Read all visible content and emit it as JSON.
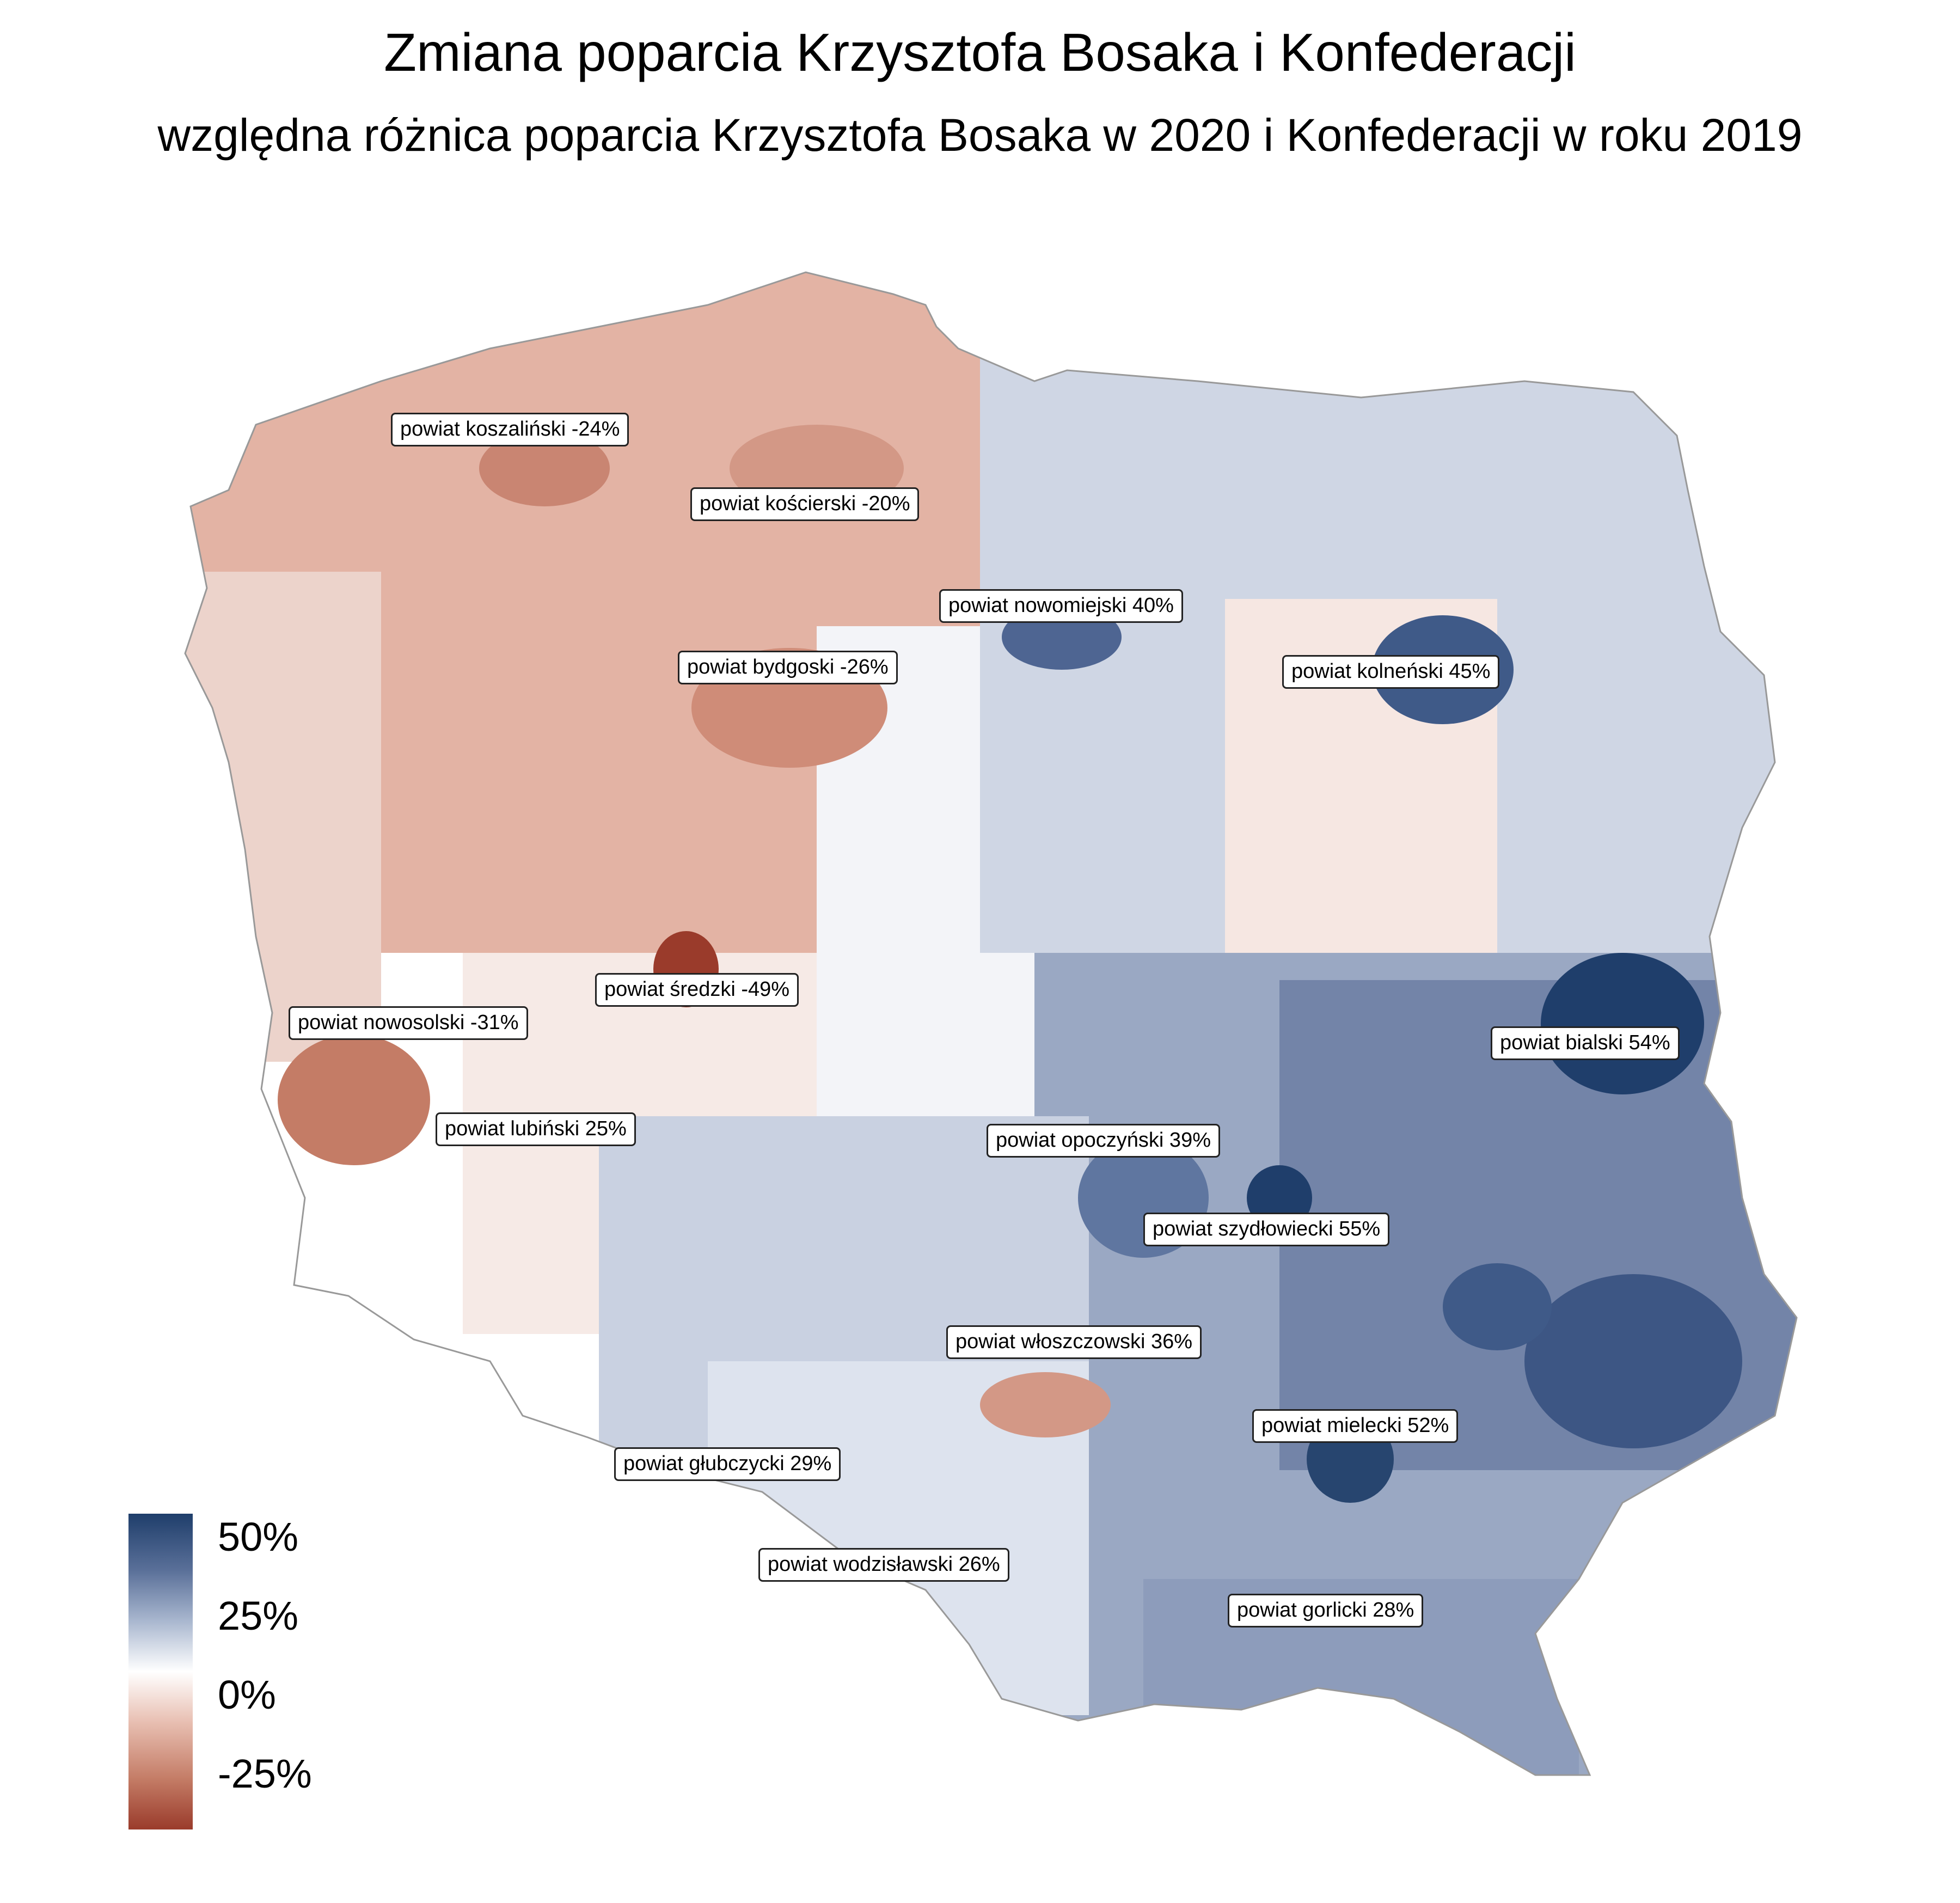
{
  "title": "Zmiana poparcia Krzysztofa Bosaka i Konfederacji",
  "subtitle": "względna różnica poparcia Krzysztofa Bosaka w 2020 i Konfederacji w roku 2019",
  "colors": {
    "strong_positive": "#1f3e6b",
    "positive": "#5a7099",
    "mild_positive": "#a9b7cf",
    "neutral": "#ffffff",
    "mild_negative": "#e8bfb2",
    "negative": "#c47c66",
    "strong_negative": "#9a3b2b"
  },
  "legend": {
    "labels": [
      "50%",
      "25%",
      "0%",
      "-25%"
    ],
    "values": [
      50,
      25,
      0,
      -25
    ],
    "range": [
      -50,
      55
    ]
  },
  "labels": [
    {
      "text": "powiat koszaliński -24%",
      "value": -24
    },
    {
      "text": "powiat kościerski -20%",
      "value": -20
    },
    {
      "text": "powiat nowomiejski 40%",
      "value": 40
    },
    {
      "text": "powiat bydgoski -26%",
      "value": -26
    },
    {
      "text": "powiat kolneński 45%",
      "value": 45
    },
    {
      "text": "powiat średzki -49%",
      "value": -49
    },
    {
      "text": "powiat nowosolski -31%",
      "value": -31
    },
    {
      "text": "powiat bialski 54%",
      "value": 54
    },
    {
      "text": "powiat lubiński 25%",
      "value": 25
    },
    {
      "text": "powiat opoczyński 39%",
      "value": 39
    },
    {
      "text": "powiat szydłowiecki 55%",
      "value": 55
    },
    {
      "text": "powiat włoszczowski 36%",
      "value": 36
    },
    {
      "text": "powiat mielecki 52%",
      "value": 52
    },
    {
      "text": "powiat głubczycki 29%",
      "value": 29
    },
    {
      "text": "powiat wodzisławski 26%",
      "value": 26
    },
    {
      "text": "powiat gorlicki 28%",
      "value": 28
    }
  ]
}
